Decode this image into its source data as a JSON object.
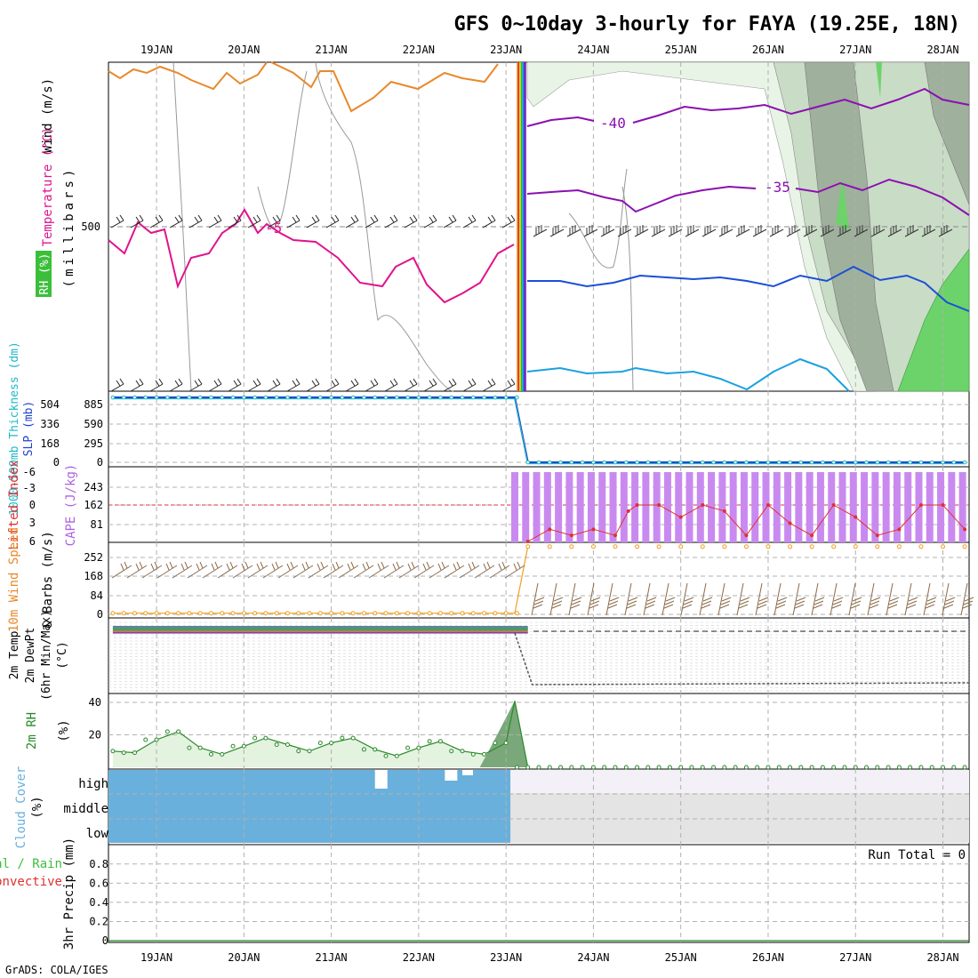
{
  "header": {
    "title": "GFS 0~10day 3-hourly for FAYA (19.25E, 18N)",
    "credit": "GrADS: COLA/IGES"
  },
  "dates": [
    "19JAN",
    "20JAN",
    "21JAN",
    "22JAN",
    "23JAN",
    "24JAN",
    "25JAN",
    "26JAN",
    "27JAN",
    "28JAN"
  ],
  "colors": {
    "rh_light": "#e8f4e6",
    "rh_mid": "#c9dcc6",
    "rh_dark": "#9fb09d",
    "rh_green": "#6cd36a",
    "temp_orange": "#e8892b",
    "temp_magenta": "#e0138c",
    "temp_purple": "#8b10b0",
    "temp_blue": "#1b4fd6",
    "temp_cyan": "#1aa1e0",
    "thickness": "#1fb8c8",
    "slp": "#2244cc",
    "cape_bar": "#c98af0",
    "lifted": "#e03030",
    "wind_speed": "#f0a020",
    "barb": "#8b6a4a",
    "rh2m": "#2a8a2a",
    "cloud": "#6ab0dc",
    "grid": "#b0b0b0"
  },
  "chart_data": [
    {
      "panel": "upper-air",
      "type": "area",
      "ylabel": [
        "Wind (m/s)",
        "Temperature (°C)",
        "RH (%)",
        "(millibars)"
      ],
      "yticks": [
        "500"
      ],
      "contour_labels": [
        "-40",
        "-35",
        "-5"
      ],
      "series": [
        {
          "name": "-40",
          "values_note": "isotherm after 23JAN",
          "x": [
            23.25,
            24.0,
            25.0,
            26.0,
            27.0,
            28.0,
            28.25
          ],
          "y": [
            -40,
            -40,
            -40,
            -40,
            -40,
            -40,
            -40
          ]
        },
        {
          "name": "-35",
          "x": [
            23.25,
            24.0,
            25.0,
            26.0,
            27.0,
            28.0,
            28.25
          ],
          "y": [
            -35,
            -35,
            -35,
            -35,
            -35,
            -35,
            -35
          ]
        },
        {
          "name": "-5",
          "x": [
            18.5,
            19.0,
            20.0,
            21.0,
            22.0,
            23.0
          ],
          "y": [
            -5,
            -5,
            -5,
            -5,
            -5,
            -5
          ]
        }
      ]
    },
    {
      "panel": "thickness-slp",
      "type": "line",
      "ylabel_left": "1000-500mb Thickness (dm)",
      "ylabel_right": "SLP (mb)",
      "yticks_left": [
        "504",
        "336",
        "168",
        "0"
      ],
      "yticks_right": [
        "885",
        "590",
        "295",
        "0"
      ],
      "x": [
        18.5,
        19,
        20,
        21,
        22,
        23,
        23.1,
        23.25,
        24,
        25,
        26,
        27,
        28,
        28.25
      ],
      "series": [
        {
          "name": "SLP",
          "values": [
            885,
            885,
            885,
            885,
            885,
            885,
            885,
            0,
            0,
            0,
            0,
            0,
            0,
            0
          ]
        }
      ]
    },
    {
      "panel": "cape-li",
      "type": "bar",
      "ylabel_left": "Lifted Index",
      "ylabel_right": "CAPE (J/kg)",
      "yticks_left": [
        "-6",
        "-3",
        "0",
        "3",
        "6"
      ],
      "yticks_right": [
        "243",
        "162",
        "81"
      ],
      "cape_value": 300,
      "lifted_x": [
        23.25,
        23.5,
        23.75,
        24.0,
        24.25,
        24.4,
        24.5,
        24.75,
        25.0,
        25.25,
        25.5,
        25.75,
        26.0,
        26.25,
        26.5,
        26.75,
        27.0,
        27.25,
        27.5,
        27.75,
        28.0,
        28.25
      ],
      "lifted_y": [
        6,
        4,
        5,
        4,
        5,
        1,
        0,
        0,
        2,
        0,
        1,
        5,
        0,
        3,
        5,
        0,
        2,
        5,
        4,
        0,
        0,
        4
      ]
    },
    {
      "panel": "10m-wind",
      "type": "line",
      "ylabel": [
        "10m Wind Speed",
        "& Barbs (m/s)"
      ],
      "yticks": [
        "252",
        "168",
        "84",
        "0"
      ],
      "x_before": [
        18.5,
        23.1
      ],
      "speed_before": 5,
      "speed_after": 300
    },
    {
      "panel": "2m-temp",
      "type": "line",
      "ylabel": [
        "2m Temp",
        "2m DewPt",
        "(6hr Min/Max)",
        "(°C)"
      ]
    },
    {
      "panel": "2m-rh",
      "type": "area",
      "ylabel": [
        "2m RH",
        "(%)"
      ],
      "yticks": [
        "40",
        "20"
      ],
      "x": [
        18.5,
        18.75,
        19.0,
        19.25,
        19.5,
        19.75,
        20.0,
        20.25,
        20.5,
        20.75,
        21.0,
        21.25,
        21.5,
        21.75,
        22.0,
        22.25,
        22.5,
        22.75,
        23.0,
        23.1,
        23.25
      ],
      "values": [
        10,
        9,
        17,
        22,
        12,
        8,
        13,
        18,
        14,
        10,
        15,
        18,
        11,
        7,
        12,
        16,
        10,
        8,
        15,
        41,
        0
      ]
    },
    {
      "panel": "cloud-cover",
      "type": "area",
      "ylabel": [
        "Cloud Cover",
        "(%)"
      ],
      "levels": [
        "high",
        "middle",
        "low"
      ]
    },
    {
      "panel": "precip",
      "type": "bar",
      "ylabel": [
        "3hr Precip (mm)"
      ],
      "side_labels": [
        "Total / Rain",
        "Convective"
      ],
      "yticks": [
        "0.8",
        "0.6",
        "0.4",
        "0.2",
        "0"
      ],
      "run_total": "Run Total = 0"
    }
  ]
}
